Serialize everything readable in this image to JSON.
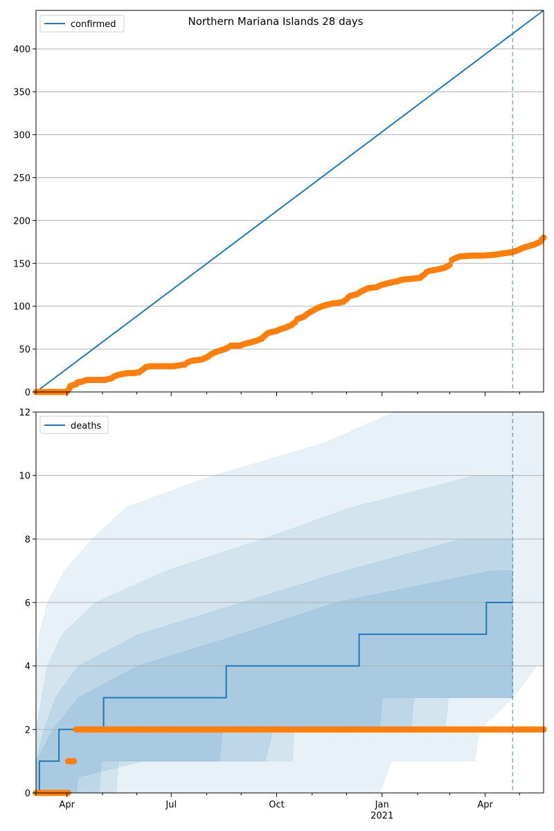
{
  "figure_title": "Northern Mariana Islands 28 days",
  "chart_data": [
    {
      "type": "line",
      "panel": "top",
      "legend": [
        "confirmed"
      ],
      "legend_position": "top-left",
      "ylim": [
        0,
        445
      ],
      "xlim_days": [
        0,
        443
      ],
      "yticks": [
        0,
        50,
        100,
        150,
        200,
        250,
        300,
        350,
        400
      ],
      "grid": "horizontal",
      "vline_day": 416,
      "series": [
        {
          "name": "confirmed",
          "kind": "line",
          "color": "#1f77b4",
          "points": [
            [
              0,
              0
            ],
            [
              443,
              445
            ]
          ]
        },
        {
          "name": "observed confirmed",
          "kind": "scatter",
          "color": "#ff7f0e",
          "points": [
            [
              0,
              0
            ],
            [
              10,
              0
            ],
            [
              20,
              0
            ],
            [
              27,
              0
            ],
            [
              28,
              2
            ],
            [
              29,
              4
            ],
            [
              30,
              7
            ],
            [
              35,
              9
            ],
            [
              36,
              11
            ],
            [
              40,
              12
            ],
            [
              42,
              13
            ],
            [
              45,
              14
            ],
            [
              50,
              14
            ],
            [
              55,
              14
            ],
            [
              60,
              14
            ],
            [
              63,
              15
            ],
            [
              66,
              16
            ],
            [
              68,
              18
            ],
            [
              72,
              20
            ],
            [
              76,
              21
            ],
            [
              80,
              22
            ],
            [
              85,
              22
            ],
            [
              90,
              23
            ],
            [
              92,
              25
            ],
            [
              94,
              27
            ],
            [
              96,
              29
            ],
            [
              100,
              30
            ],
            [
              110,
              30
            ],
            [
              120,
              30
            ],
            [
              125,
              31
            ],
            [
              130,
              32
            ],
            [
              132,
              34
            ],
            [
              135,
              36
            ],
            [
              140,
              37
            ],
            [
              145,
              38
            ],
            [
              150,
              41
            ],
            [
              153,
              44
            ],
            [
              156,
              46
            ],
            [
              160,
              48
            ],
            [
              165,
              50
            ],
            [
              168,
              52
            ],
            [
              170,
              54
            ],
            [
              178,
              54
            ],
            [
              182,
              56
            ],
            [
              188,
              58
            ],
            [
              193,
              60
            ],
            [
              197,
              62
            ],
            [
              200,
              66
            ],
            [
              203,
              69
            ],
            [
              210,
              71
            ],
            [
              213,
              73
            ],
            [
              218,
              75
            ],
            [
              223,
              78
            ],
            [
              226,
              81
            ],
            [
              228,
              85
            ],
            [
              234,
              88
            ],
            [
              238,
              92
            ],
            [
              242,
              95
            ],
            [
              246,
              98
            ],
            [
              252,
              101
            ],
            [
              258,
              103
            ],
            [
              264,
              104
            ],
            [
              268,
              105
            ],
            [
              271,
              108
            ],
            [
              274,
              112
            ],
            [
              280,
              114
            ],
            [
              285,
              118
            ],
            [
              290,
              121
            ],
            [
              297,
              122
            ],
            [
              302,
              125
            ],
            [
              308,
              127
            ],
            [
              315,
              129
            ],
            [
              320,
              131
            ],
            [
              328,
              132
            ],
            [
              335,
              133
            ],
            [
              339,
              137
            ],
            [
              341,
              140
            ],
            [
              343,
              141
            ],
            [
              347,
              142
            ],
            [
              351,
              143
            ],
            [
              357,
              145
            ],
            [
              361,
              148
            ],
            [
              363,
              154
            ],
            [
              366,
              156
            ],
            [
              370,
              158
            ],
            [
              380,
              159
            ],
            [
              390,
              159
            ],
            [
              400,
              160
            ],
            [
              410,
              162
            ],
            [
              416,
              163
            ],
            [
              420,
              165
            ],
            [
              425,
              168
            ],
            [
              430,
              170
            ],
            [
              435,
              172
            ],
            [
              440,
              175
            ],
            [
              443,
              180
            ]
          ]
        }
      ]
    },
    {
      "type": "line",
      "panel": "bottom",
      "legend": [
        "deaths"
      ],
      "legend_position": "top-left",
      "ylim": [
        0,
        12
      ],
      "xlim_days": [
        0,
        443
      ],
      "yticks": [
        0,
        2,
        4,
        6,
        8,
        10,
        12
      ],
      "grid": "horizontal",
      "vline_day": 416,
      "x_tick_labels": [
        {
          "day": 27,
          "label": "Apr"
        },
        {
          "day": 118,
          "label": "Jul"
        },
        {
          "day": 210,
          "label": "Oct"
        },
        {
          "day": 302,
          "label": "Jan"
        },
        {
          "day": 392,
          "label": "Apr"
        }
      ],
      "x_tick_sublabel": {
        "day": 302,
        "label": "2021"
      },
      "x_minor_ticks": [
        0,
        58,
        88,
        149,
        179,
        241,
        271,
        333,
        361,
        422
      ],
      "series": [
        {
          "name": "deaths",
          "kind": "step",
          "color": "#1f77b4",
          "points": [
            [
              0,
              0
            ],
            [
              3,
              0
            ],
            [
              3,
              1
            ],
            [
              20,
              1
            ],
            [
              20,
              2
            ],
            [
              59,
              2
            ],
            [
              59,
              3
            ],
            [
              166,
              3
            ],
            [
              166,
              4
            ],
            [
              282,
              4
            ],
            [
              282,
              5
            ],
            [
              393,
              5
            ],
            [
              393,
              6
            ],
            [
              416,
              6
            ]
          ]
        },
        {
          "name": "observed deaths",
          "kind": "scatter",
          "color": "#ff7f0e",
          "points": [
            [
              0,
              0
            ],
            [
              5,
              0
            ],
            [
              10,
              0
            ],
            [
              15,
              0
            ],
            [
              20,
              0
            ],
            [
              25,
              0
            ],
            [
              28,
              0
            ],
            [
              28,
              1
            ],
            [
              30,
              1
            ],
            [
              33,
              1
            ],
            [
              35,
              2
            ],
            [
              443,
              2
            ]
          ]
        }
      ],
      "bands": [
        {
          "name": "band-outer",
          "color": "#1f77b4",
          "opacity": 0.1,
          "upper": [
            [
              0,
              4
            ],
            [
              3,
              5
            ],
            [
              10,
              6
            ],
            [
              25,
              7
            ],
            [
              49,
              8
            ],
            [
              79,
              9
            ],
            [
              155,
              10
            ],
            [
              250,
              11
            ],
            [
              313,
              12
            ],
            [
              443,
              12
            ]
          ],
          "lower": [
            [
              0,
              0
            ],
            [
              300,
              0
            ],
            [
              310,
              1
            ],
            [
              383,
              1
            ],
            [
              387,
              2
            ],
            [
              416,
              3
            ],
            [
              437,
              4
            ],
            [
              443,
              4
            ]
          ]
        },
        {
          "name": "band-middle",
          "color": "#1f77b4",
          "opacity": 0.1,
          "upper": [
            [
              0,
              2
            ],
            [
              5,
              3
            ],
            [
              10,
              4
            ],
            [
              23,
              5
            ],
            [
              52,
              6
            ],
            [
              114,
              7
            ],
            [
              198,
              8
            ],
            [
              276,
              9
            ],
            [
              384,
              10
            ],
            [
              416,
              10
            ]
          ],
          "lower": [
            [
              0,
              0
            ],
            [
              70,
              0
            ],
            [
              72,
              1
            ],
            [
              224,
              1
            ],
            [
              225,
              2
            ],
            [
              357,
              2
            ],
            [
              360,
              3
            ],
            [
              416,
              3
            ]
          ]
        },
        {
          "name": "band-inner",
          "color": "#1f77b4",
          "opacity": 0.12,
          "upper": [
            [
              0,
              1
            ],
            [
              7,
              2
            ],
            [
              17,
              3
            ],
            [
              37,
              4
            ],
            [
              90,
              5
            ],
            [
              180,
              6
            ],
            [
              270,
              7
            ],
            [
              372,
              8
            ],
            [
              416,
              8
            ]
          ],
          "lower": [
            [
              0,
              0
            ],
            [
              15,
              0
            ],
            [
              35,
              0
            ],
            [
              37,
              0.5
            ],
            [
              94,
              1
            ],
            [
              200,
              1
            ],
            [
              207,
              2
            ],
            [
              327,
              2
            ],
            [
              330,
              3
            ],
            [
              416,
              3
            ]
          ]
        },
        {
          "name": "band-core",
          "color": "#1f77b4",
          "opacity": 0.12,
          "upper": [
            [
              0,
              1
            ],
            [
              15,
              2
            ],
            [
              37,
              3
            ],
            [
              89,
              4
            ],
            [
              178,
              5
            ],
            [
              262,
              6
            ],
            [
              398,
              7
            ],
            [
              416,
              7
            ]
          ],
          "lower": [
            [
              0,
              0
            ],
            [
              55,
              0
            ],
            [
              57,
              1
            ],
            [
              160,
              1
            ],
            [
              163,
              2
            ],
            [
              300,
              2
            ],
            [
              302,
              3
            ],
            [
              416,
              3
            ]
          ]
        }
      ]
    }
  ]
}
